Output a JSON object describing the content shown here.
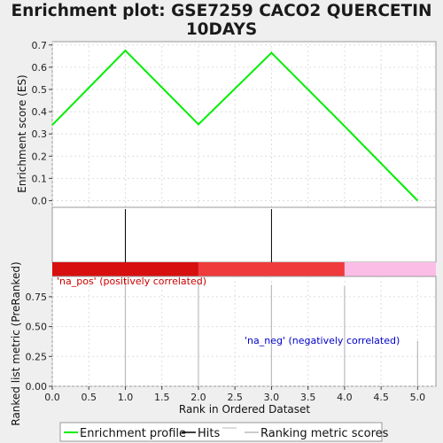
{
  "chart_data": {
    "type": "line",
    "title_lines": [
      "Enrichment plot: GSE7259 CACO2 QUERCETIN",
      "10DAYS"
    ],
    "es_ylabel": "Enrichment score (ES)",
    "es_yticks": [
      "0.0",
      "0.1",
      "0.2",
      "0.3",
      "0.4",
      "0.5",
      "0.6",
      "0.7"
    ],
    "es_yticks_values": [
      0.0,
      0.1,
      0.2,
      0.3,
      0.4,
      0.5,
      0.6,
      0.7
    ],
    "es_ylim": [
      -0.03,
      0.715
    ],
    "xlim": [
      0,
      5.25
    ],
    "es_points": [
      {
        "x": 0,
        "y": 0.34
      },
      {
        "x": 1,
        "y": 0.675
      },
      {
        "x": 2,
        "y": 0.343
      },
      {
        "x": 3,
        "y": 0.665
      },
      {
        "x": 4,
        "y": 0.335
      },
      {
        "x": 5,
        "y": 0.0
      }
    ],
    "hits": [
      1,
      3
    ],
    "color_bands": [
      {
        "from": 0,
        "to": 2,
        "color": "#d70f0f"
      },
      {
        "from": 2,
        "to": 4,
        "color": "#ef3b3b"
      },
      {
        "from": 4,
        "to": 5.25,
        "color": "#fbbde6"
      }
    ],
    "rank_ylabel": "Ranked list metric (PreRanked)",
    "rank_yticks": [
      "0.00",
      "0.25",
      "0.50",
      "0.75"
    ],
    "rank_yticks_values": [
      0,
      0.25,
      0.5,
      0.75
    ],
    "rank_ylim": [
      0,
      0.92
    ],
    "rank_bars": [
      {
        "x": 1,
        "y": 0.9
      },
      {
        "x": 2,
        "y": 0.88
      },
      {
        "x": 3,
        "y": 0.85
      },
      {
        "x": 4,
        "y": 0.84
      },
      {
        "x": 5,
        "y": 0.38
      }
    ],
    "xlabel": "Rank in Ordered Dataset",
    "xticks": [
      "0.0",
      "0.5",
      "1.0",
      "1.5",
      "2.0",
      "2.5",
      "3.0",
      "3.5",
      "4.0",
      "4.5",
      "5.0"
    ],
    "xticks_values": [
      0,
      0.5,
      1,
      1.5,
      2,
      2.5,
      3,
      3.5,
      4,
      4.5,
      5
    ],
    "pos_label": "'na_pos' (positively correlated)",
    "neg_label": "'na_neg' (negatively correlated)",
    "legend": [
      "Enrichment profile",
      "Hits",
      "Ranking metric scores"
    ],
    "colors": {
      "profile": "#00ee00",
      "hits": "#000000",
      "ranking": "#bbbbbb",
      "pos_text": "#cc0000",
      "neg_text": "#0000cc",
      "grid": "#dddddd"
    }
  }
}
